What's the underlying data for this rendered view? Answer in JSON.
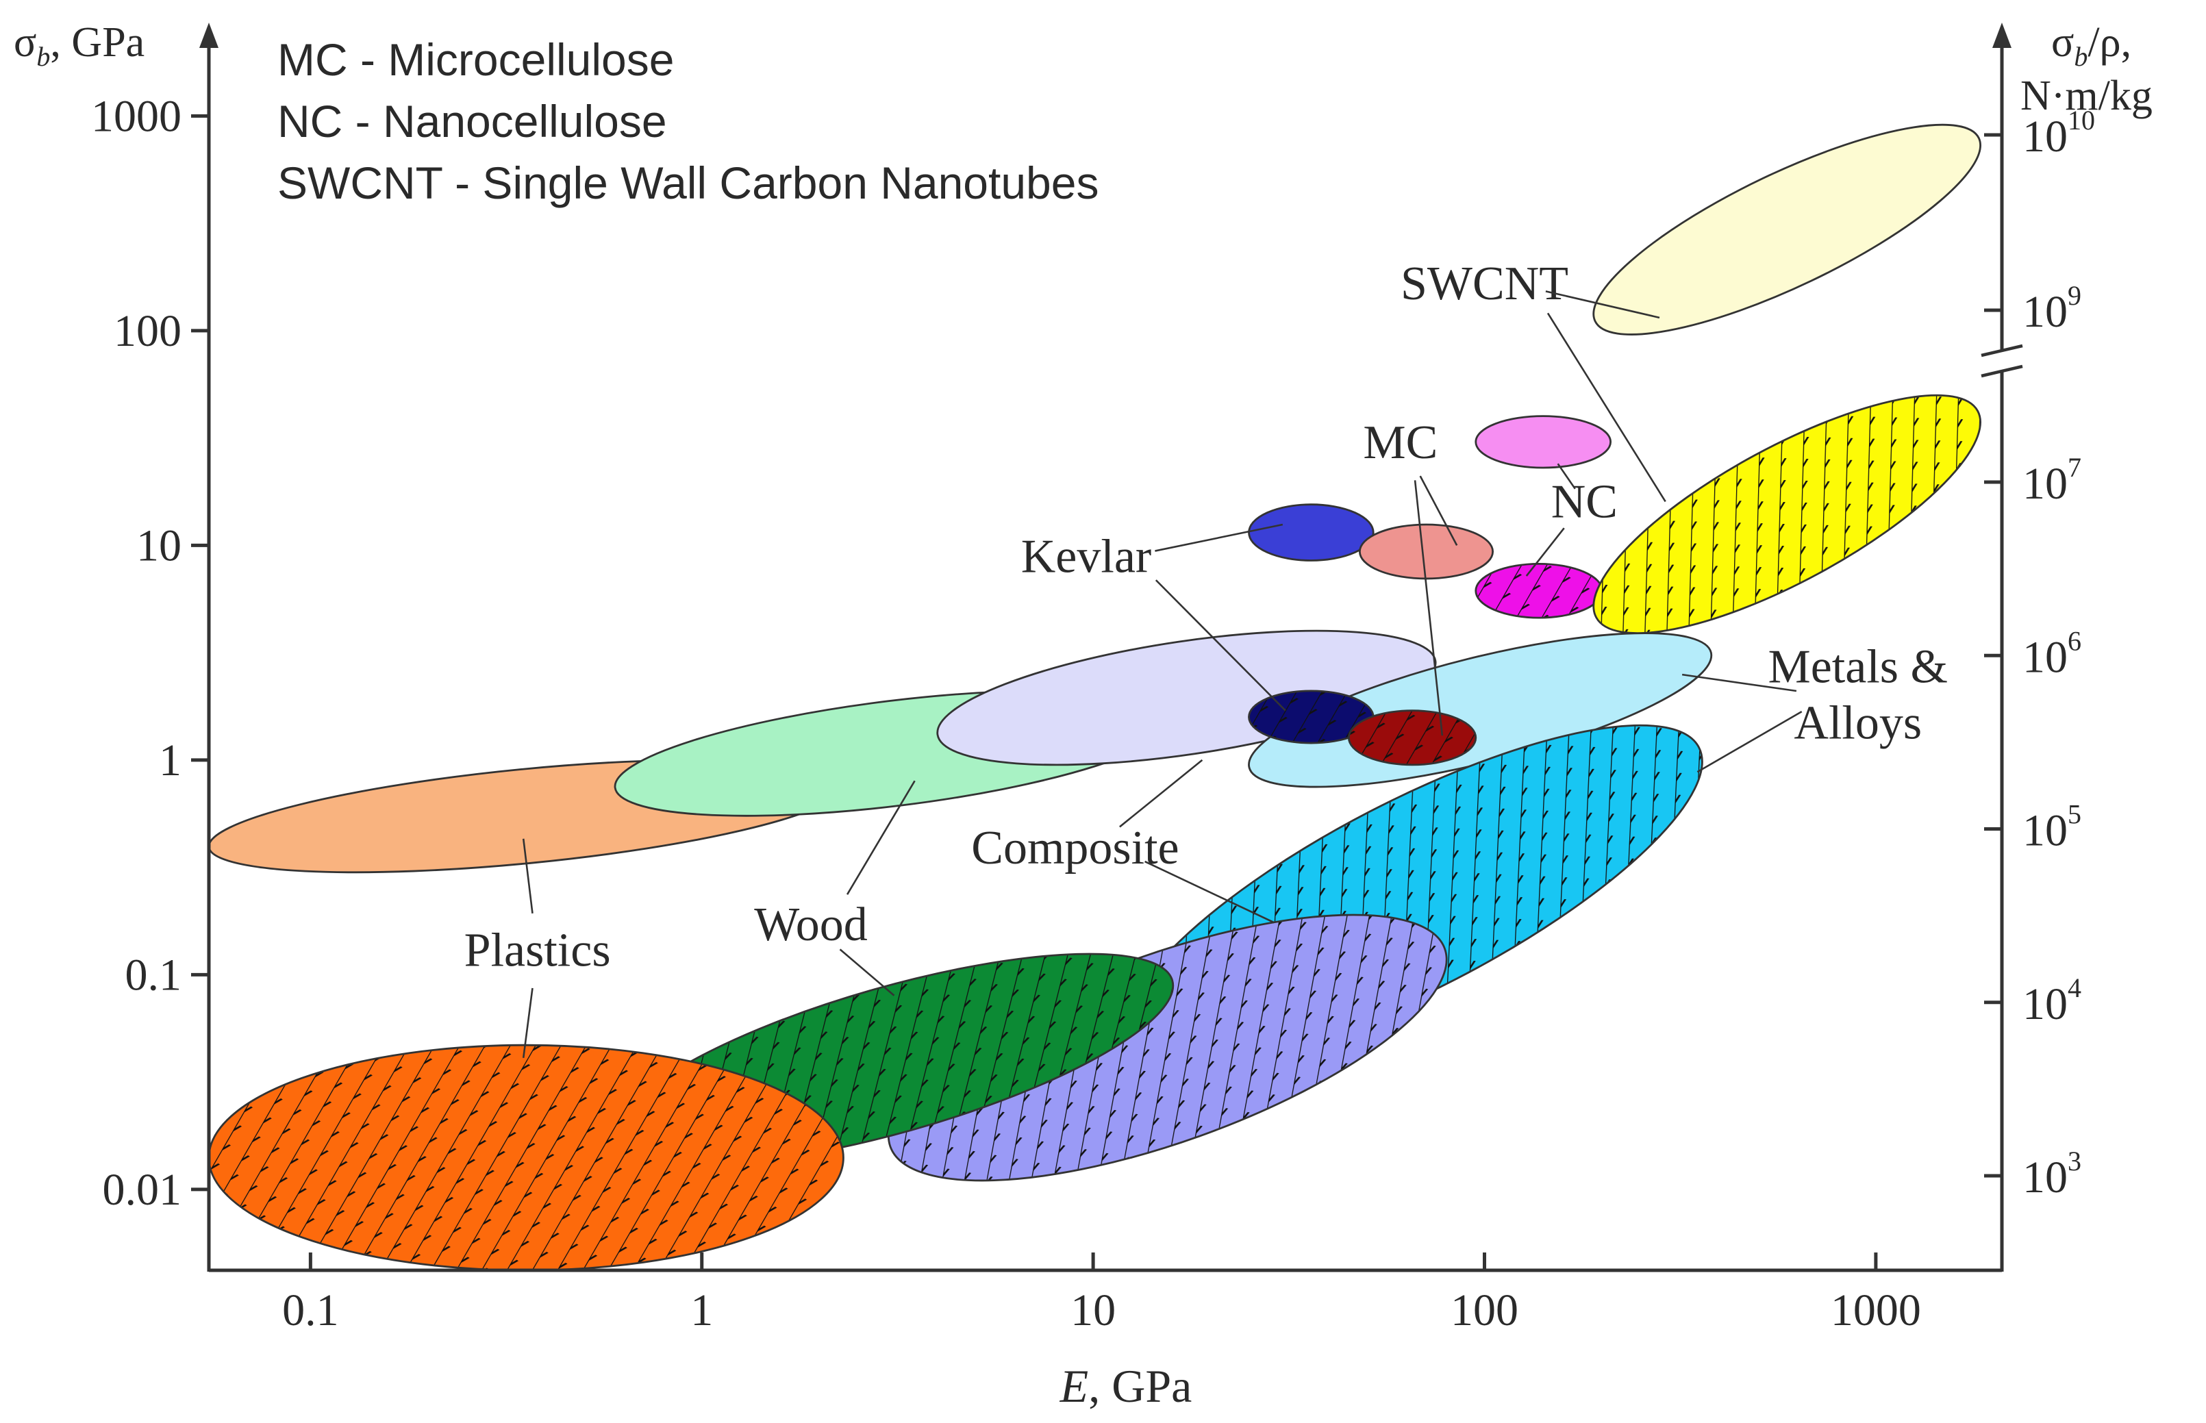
{
  "chart_data": {
    "type": "scatter",
    "title": "",
    "x_axis": {
      "label_main": "E",
      "label_unit": ", GPa",
      "scale": "log",
      "range": [
        0.055,
        2100
      ],
      "ticks": [
        {
          "value": 0.1,
          "label": "0.1"
        },
        {
          "value": 1,
          "label": "1"
        },
        {
          "value": 10,
          "label": "10"
        },
        {
          "value": 100,
          "label": "100"
        },
        {
          "value": 1000,
          "label": "1000"
        }
      ]
    },
    "y_axis_left": {
      "label_main": "σ",
      "label_sub": "b",
      "label_unit": ", GPa",
      "scale": "log",
      "range": [
        0.0042,
        2000
      ],
      "ticks": [
        {
          "value": 0.01,
          "label": "0.01"
        },
        {
          "value": 0.1,
          "label": "0.1"
        },
        {
          "value": 1,
          "label": "1"
        },
        {
          "value": 10,
          "label": "10"
        },
        {
          "value": 100,
          "label": "100"
        },
        {
          "value": 1000,
          "label": "1000"
        }
      ]
    },
    "y_axis_right": {
      "label_line1": "σ",
      "label_sub": "b",
      "label_line1_rest": "/ρ,",
      "label_line2": "N·m/kg",
      "scale": "log",
      "broken": true,
      "ticks": [
        {
          "value": 1000,
          "mantissa": "10",
          "exponent": "3"
        },
        {
          "value": 10000,
          "mantissa": "10",
          "exponent": "4"
        },
        {
          "value": 100000,
          "mantissa": "10",
          "exponent": "5"
        },
        {
          "value": 1000000,
          "mantissa": "10",
          "exponent": "6"
        },
        {
          "value": 10000000,
          "mantissa": "10",
          "exponent": "7"
        },
        {
          "value": 1000000000,
          "mantissa": "10",
          "exponent": "9"
        },
        {
          "value": 10000000000,
          "mantissa": "10",
          "exponent": "10"
        }
      ]
    },
    "legend_lines": [
      "MC - Microcellulose",
      "NC - Nanocellulose",
      "SWCNT - Single Wall Carbon Nanotubes"
    ],
    "regions": [
      {
        "id": "plastics-modulus",
        "group": "Plastics",
        "metric": "sigma_b",
        "x_range": [
          0.055,
          2.3
        ],
        "y_range": [
          0.3,
          1.0
        ],
        "tilt": "low",
        "color": "#f9b37f",
        "hatched": false
      },
      {
        "id": "wood-modulus",
        "group": "Wood",
        "metric": "sigma_b",
        "x_range": [
          0.6,
          16
        ],
        "y_range": [
          0.55,
          2.1
        ],
        "tilt": "low",
        "color": "#a8f2c4",
        "hatched": false
      },
      {
        "id": "composite-modulus",
        "group": "Composite",
        "metric": "sigma_b",
        "x_range": [
          4,
          75
        ],
        "y_range": [
          0.95,
          4
        ],
        "tilt": "low",
        "color": "#dcdcfa",
        "hatched": false
      },
      {
        "id": "metals-modulus",
        "group": "Metals & Alloys",
        "metric": "sigma_b",
        "x_range": [
          25,
          380
        ],
        "y_range": [
          0.75,
          3.9
        ],
        "tilt": "mid",
        "color": "#b5ecfa",
        "hatched": false
      },
      {
        "id": "kevlar-strength",
        "group": "Kevlar",
        "metric": "sigma_b",
        "x_range": [
          25,
          52
        ],
        "y_range": [
          8.5,
          15.5
        ],
        "tilt": "flat",
        "color": "#3a3fd6",
        "hatched": false
      },
      {
        "id": "kevlar-specific",
        "group": "Kevlar",
        "metric": "sigma_b_per_rho",
        "x_range": [
          25,
          52
        ],
        "y_range": [
          1.2,
          2.1
        ],
        "tilt": "flat",
        "color": "#0c0c6e",
        "hatched": true
      },
      {
        "id": "mc-strength",
        "group": "MC",
        "metric": "sigma_b",
        "x_range": [
          48,
          105
        ],
        "y_range": [
          7,
          12.5
        ],
        "tilt": "flat",
        "color": "#ee9490",
        "hatched": false
      },
      {
        "id": "mc-specific",
        "group": "MC",
        "metric": "sigma_b_per_rho",
        "x_range": [
          45,
          95
        ],
        "y_range": [
          0.95,
          1.7
        ],
        "tilt": "flat",
        "color": "#9a0b0b",
        "hatched": true
      },
      {
        "id": "nc-strength",
        "group": "NC",
        "metric": "sigma_b",
        "x_range": [
          95,
          210
        ],
        "y_range": [
          23,
          40
        ],
        "tilt": "flat",
        "color": "#f68ef2",
        "hatched": false
      },
      {
        "id": "nc-specific",
        "group": "NC",
        "metric": "sigma_b_per_rho",
        "x_range": [
          95,
          200
        ],
        "y_range": [
          4.6,
          8.2
        ],
        "tilt": "flat",
        "color": "#ee10e8",
        "hatched": true
      },
      {
        "id": "swcnt-strength",
        "group": "SWCNT",
        "metric": "sigma_b",
        "x_range": [
          190,
          1850
        ],
        "y_range": [
          96,
          910
        ],
        "tilt": "high",
        "color": "#fdfbd2",
        "hatched": false
      },
      {
        "id": "swcnt-specific",
        "group": "SWCNT",
        "metric": "sigma_b_per_rho",
        "x_range": [
          190,
          1850
        ],
        "y_range": [
          3.9,
          50
        ],
        "tilt": "high",
        "color": "#fdfb06",
        "hatched": true
      },
      {
        "id": "metals-specific",
        "group": "Metals & Alloys",
        "metric": "sigma_b_per_rho",
        "x_range": [
          12,
          360
        ],
        "y_range": [
          0.038,
          1.45
        ],
        "tilt": "high",
        "color": "#18c6f3",
        "hatched": true
      },
      {
        "id": "composite-specific",
        "group": "Composite",
        "metric": "sigma_b_per_rho",
        "x_range": [
          3,
          80
        ],
        "y_range": [
          0.011,
          0.19
        ],
        "tilt": "mid",
        "color": "#9a9af6",
        "hatched": true
      },
      {
        "id": "wood-specific",
        "group": "Wood",
        "metric": "sigma_b_per_rho",
        "x_range": [
          0.6,
          16
        ],
        "y_range": [
          0.013,
          0.125
        ],
        "tilt": "mid",
        "color": "#0c8a34",
        "hatched": true
      },
      {
        "id": "plastics-specific",
        "group": "Plastics",
        "metric": "sigma_b_per_rho",
        "x_range": [
          0.055,
          2.3
        ],
        "y_range": [
          0.0042,
          0.047
        ],
        "tilt": "flat",
        "color": "#fd6a0c",
        "hatched": true
      }
    ],
    "annotations": [
      {
        "label": "Plastics",
        "lines": [
          "Plastics"
        ],
        "at": [
          0.38,
          0.11
        ],
        "anchor": "middle",
        "targets": [
          [
            0.35,
            0.43
          ],
          [
            0.35,
            0.041
          ]
        ]
      },
      {
        "label": "Wood",
        "lines": [
          "Wood"
        ],
        "at": [
          1.9,
          0.145
        ],
        "anchor": "middle",
        "targets": [
          [
            3.5,
            0.8
          ],
          [
            3.1,
            0.08
          ]
        ]
      },
      {
        "label": "Composite",
        "lines": [
          "Composite"
        ],
        "at": [
          9,
          0.33
        ],
        "anchor": "middle",
        "targets": [
          [
            19,
            1.0
          ],
          [
            29,
            0.175
          ]
        ]
      },
      {
        "label": "Kevlar",
        "lines": [
          "Kevlar"
        ],
        "at": [
          9.6,
          7.5
        ],
        "anchor": "middle",
        "targets": [
          [
            30.5,
            12.5
          ],
          [
            31,
            1.7
          ]
        ]
      },
      {
        "label": "MC",
        "lines": [
          "MC"
        ],
        "at": [
          61,
          25.5
        ],
        "anchor": "middle",
        "targets": [
          [
            85,
            10
          ],
          [
            78,
            1.3
          ]
        ]
      },
      {
        "label": "NC",
        "lines": [
          "NC"
        ],
        "at": [
          180,
          13.5
        ],
        "anchor": "middle",
        "targets": [
          [
            154,
            24
          ],
          [
            128,
            7.2
          ]
        ]
      },
      {
        "label": "SWCNT",
        "lines": [
          "SWCNT"
        ],
        "at": [
          100,
          140
        ],
        "anchor": "middle",
        "targets": [
          [
            280,
            115
          ],
          [
            290,
            16
          ]
        ]
      },
      {
        "label": "Metals & Alloys",
        "lines": [
          "Metals &",
          "Alloys"
        ],
        "at": [
          900,
          2.3
        ],
        "anchor": "middle",
        "targets": [
          [
            320,
            2.5
          ],
          [
            350,
            0.88
          ]
        ]
      }
    ]
  }
}
